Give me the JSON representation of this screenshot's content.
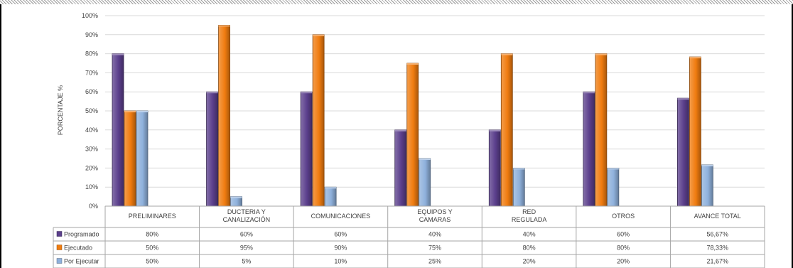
{
  "chart_data": {
    "type": "bar",
    "ylabel": "PORCENTAJE %",
    "ylim": [
      0,
      100
    ],
    "y_ticks": [
      "0%",
      "10%",
      "20%",
      "30%",
      "40%",
      "50%",
      "60%",
      "70%",
      "80%",
      "90%",
      "100%"
    ],
    "grid": true,
    "legend": "table-below",
    "categories": [
      [
        "PRELIMINARES"
      ],
      [
        "DUCTERIA Y",
        "CANALIZACIÓN"
      ],
      [
        "COMUNICACIONES"
      ],
      [
        "EQUIPOS Y",
        "CAMARAS"
      ],
      [
        "RED",
        "REGULADA"
      ],
      [
        "OTROS"
      ],
      [
        "AVANCE TOTAL"
      ]
    ],
    "series": [
      {
        "name": "Programado",
        "color": "#5b3f8c",
        "values": [
          80,
          60,
          60,
          40,
          40,
          60,
          56.67
        ],
        "labels": [
          "80%",
          "60%",
          "60%",
          "40%",
          "40%",
          "60%",
          "56,67%"
        ]
      },
      {
        "name": "Ejecutado",
        "color": "#f07c10",
        "values": [
          50,
          95,
          90,
          75,
          80,
          80,
          78.33
        ],
        "labels": [
          "50%",
          "95%",
          "90%",
          "75%",
          "80%",
          "80%",
          "78,33%"
        ]
      },
      {
        "name": "Por Ejecutar",
        "color": "#8fb1dc",
        "values": [
          50,
          5,
          10,
          25,
          20,
          20,
          21.67
        ],
        "labels": [
          "50%",
          "5%",
          "10%",
          "25%",
          "20%",
          "20%",
          "21,67%"
        ]
      }
    ]
  }
}
